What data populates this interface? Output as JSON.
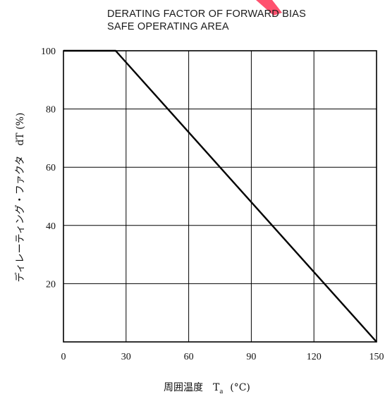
{
  "chart_data": {
    "type": "line",
    "title_line1": "DERATING FACTOR OF FORWARD BIAS",
    "title_line2": "SAFE OPERATING AREA",
    "xlabel_text": "周囲温度　T",
    "xlabel_sub": "a",
    "xlabel_unit": "(°C)",
    "ylabel": "ディレーティング・ファクタ　dT (%)",
    "xlim": [
      0,
      150
    ],
    "ylim": [
      0,
      100
    ],
    "x_ticks": [
      0,
      30,
      60,
      90,
      120,
      150
    ],
    "y_ticks": [
      20,
      40,
      60,
      80,
      100
    ],
    "grid": true,
    "series": [
      {
        "x": [
          0,
          25,
          150
        ],
        "y": [
          100,
          100,
          0
        ]
      }
    ],
    "colors": {
      "line": "#000000",
      "grid": "#000000",
      "accent": "#ff2a4a"
    }
  }
}
